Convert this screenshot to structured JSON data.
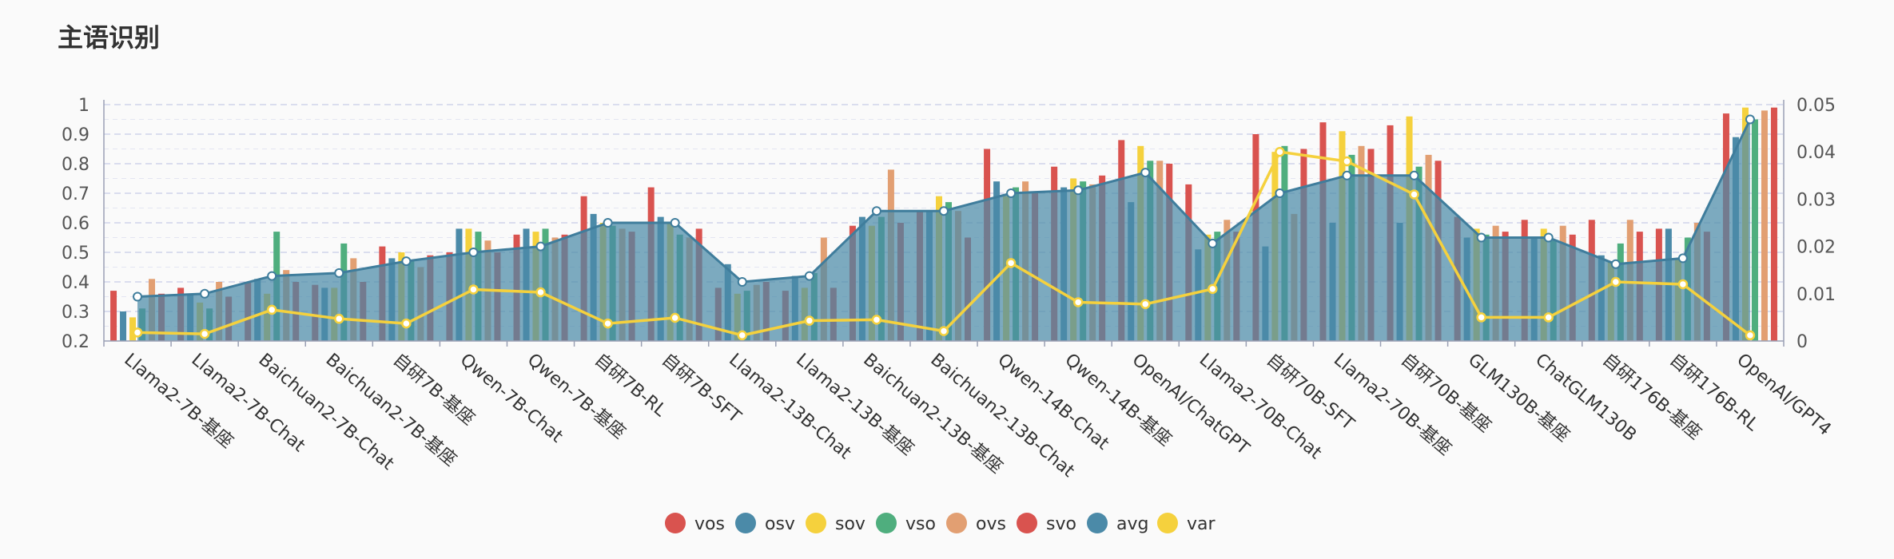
{
  "page": {
    "title": "主语识别"
  },
  "chart_data": {
    "type": "bar",
    "title": "主语识别",
    "categories": [
      "Llama2-7B-基座",
      "Llama2-7B-Chat",
      "Baichuan2-7B-Chat",
      "Baichuan2-7B-基座",
      "自研7B-基座",
      "Qwen-7B-Chat",
      "Qwen-7B-基座",
      "自研7B-RL",
      "自研7B-SFT",
      "Llama2-13B-Chat",
      "Llama2-13B-基座",
      "Baichuan2-13B-基座",
      "Baichuan2-13B-Chat",
      "Qwen-14B-Chat",
      "Qwen-14B-基座",
      "OpenAI/ChatGPT",
      "Llama2-70B-Chat",
      "自研70B-SFT",
      "Llama2-70B-基座",
      "自研70B-基座",
      "GLM130B-基座",
      "ChatGLM130B",
      "自研176B-基座",
      "自研176B-RL",
      "OpenAI/GPT4"
    ],
    "y_left": {
      "min": 0.2,
      "max": 1,
      "ticks": [
        "0.2",
        "0.3",
        "0.4",
        "0.5",
        "0.6",
        "0.7",
        "0.8",
        "0.9",
        "1"
      ]
    },
    "y_right": {
      "min": 0,
      "max": 0.05,
      "ticks": [
        "0",
        "0.01",
        "0.02",
        "0.03",
        "0.04",
        "0.05"
      ]
    },
    "series": [
      {
        "name": "vos",
        "type": "bar",
        "color": "#d9534f",
        "values": [
          0.37,
          0.38,
          0.4,
          0.39,
          0.52,
          0.5,
          0.56,
          0.69,
          0.72,
          0.38,
          0.37,
          0.59,
          0.64,
          0.85,
          0.79,
          0.88,
          0.73,
          0.9,
          0.94,
          0.93,
          0.62,
          0.61,
          0.61,
          0.58,
          0.97
        ]
      },
      {
        "name": "osv",
        "type": "bar",
        "color": "#4b8aa8",
        "values": [
          0.3,
          0.36,
          0.41,
          0.38,
          0.48,
          0.58,
          0.58,
          0.63,
          0.62,
          0.46,
          0.42,
          0.62,
          0.64,
          0.74,
          0.72,
          0.67,
          0.51,
          0.52,
          0.6,
          0.6,
          0.55,
          0.55,
          0.49,
          0.58,
          0.89
        ]
      },
      {
        "name": "sov",
        "type": "bar",
        "color": "#f5d13d",
        "values": [
          0.28,
          0.33,
          0.36,
          0.38,
          0.5,
          0.58,
          0.57,
          0.6,
          0.6,
          0.36,
          0.38,
          0.59,
          0.69,
          0.69,
          0.75,
          0.86,
          0.56,
          0.84,
          0.91,
          0.96,
          0.58,
          0.58,
          0.47,
          0.48,
          0.99
        ]
      },
      {
        "name": "vso",
        "type": "bar",
        "color": "#4fae7e",
        "values": [
          0.31,
          0.31,
          0.57,
          0.53,
          0.47,
          0.57,
          0.58,
          0.59,
          0.56,
          0.37,
          0.43,
          0.62,
          0.67,
          0.72,
          0.74,
          0.81,
          0.57,
          0.86,
          0.83,
          0.79,
          0.56,
          0.54,
          0.53,
          0.55,
          0.95
        ]
      },
      {
        "name": "ovs",
        "type": "bar",
        "color": "#e29f72",
        "values": [
          0.41,
          0.4,
          0.44,
          0.48,
          0.45,
          0.54,
          0.55,
          0.58,
          0.55,
          0.39,
          0.55,
          0.78,
          0.64,
          0.74,
          0.73,
          0.81,
          0.61,
          0.63,
          0.86,
          0.83,
          0.59,
          0.59,
          0.61,
          0.6,
          0.98
        ]
      },
      {
        "name": "svo",
        "type": "bar",
        "color": "#d9534f",
        "values": [
          0.36,
          0.35,
          0.4,
          0.4,
          0.49,
          0.5,
          0.56,
          0.57,
          0.58,
          0.4,
          0.38,
          0.6,
          0.55,
          0.7,
          0.76,
          0.8,
          0.57,
          0.85,
          0.85,
          0.81,
          0.57,
          0.56,
          0.57,
          0.57,
          0.99
        ]
      },
      {
        "name": "avg",
        "type": "area",
        "color": "#4b8aa8",
        "values": [
          0.35,
          0.36,
          0.42,
          0.43,
          0.47,
          0.5,
          0.52,
          0.6,
          0.6,
          0.4,
          0.42,
          0.64,
          0.64,
          0.7,
          0.71,
          0.77,
          0.53,
          0.7,
          0.76,
          0.76,
          0.55,
          0.55,
          0.46,
          0.48,
          0.95
        ]
      },
      {
        "name": "var",
        "type": "line",
        "axis": "right",
        "color": "#f5d13d",
        "values": [
          0.0018,
          0.0015,
          0.0066,
          0.0047,
          0.0037,
          0.0109,
          0.0103,
          0.0037,
          0.0049,
          0.0012,
          0.0043,
          0.0045,
          0.0021,
          0.0165,
          0.0082,
          0.0078,
          0.011,
          0.04,
          0.038,
          0.031,
          0.005,
          0.005,
          0.0125,
          0.012,
          0.0012
        ]
      }
    ]
  }
}
